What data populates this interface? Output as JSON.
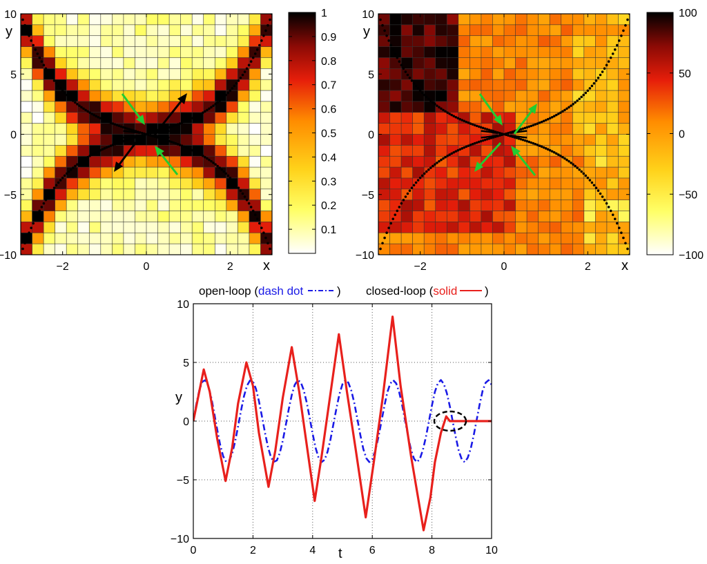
{
  "chart_data": [
    {
      "type": "heatmap",
      "panel": "top-left",
      "xlabel": "x",
      "ylabel": "y",
      "xlim": [
        -3,
        3
      ],
      "ylim": [
        -10,
        10
      ],
      "xticks": [
        -2,
        0,
        2
      ],
      "xtick_labels": [
        "−2",
        "0",
        "2"
      ],
      "yticks": [
        -10,
        -5,
        0,
        5,
        10
      ],
      "ytick_labels": [
        "−10",
        "−5",
        "0",
        "5",
        "10"
      ],
      "colorbar": {
        "min": 0,
        "max": 1,
        "ticks": [
          0.1,
          0.2,
          0.3,
          0.4,
          0.5,
          0.6,
          0.7,
          0.8,
          0.9,
          1
        ],
        "tick_labels": [
          "0.1",
          "0.2",
          "0.3",
          "0.4",
          "0.5",
          "0.6",
          "0.7",
          "0.8",
          "0.9",
          "1"
        ]
      },
      "grid": {
        "nx": 22,
        "ny": 22
      },
      "description_pattern": "X-shaped ridge along hyperbola asymptotes y = ±3.3x",
      "separatrix_curves": [
        "y = 10*sinh(x)/sinh(3)",
        "y = -10*sinh(x)/sinh(3)"
      ]
    },
    {
      "type": "heatmap",
      "panel": "top-right",
      "xlabel": "x",
      "ylabel": "y",
      "xlim": [
        -3,
        3
      ],
      "ylim": [
        -10,
        10
      ],
      "xticks": [
        -2,
        0,
        2
      ],
      "xtick_labels": [
        "−2",
        "0",
        "2"
      ],
      "yticks": [
        -10,
        -5,
        0,
        5,
        10
      ],
      "ytick_labels": [
        "−10",
        "−5",
        "0",
        "5",
        "10"
      ],
      "colorbar": {
        "min": -100,
        "max": 100,
        "ticks": [
          -100,
          -50,
          0,
          50,
          100
        ],
        "tick_labels": [
          "−100",
          "−50",
          "0",
          "50",
          "100"
        ]
      },
      "grid": {
        "nx": 22,
        "ny": 22
      }
    },
    {
      "type": "line",
      "panel": "bottom",
      "xlabel": "t",
      "ylabel": "y",
      "xlim": [
        0,
        10
      ],
      "ylim": [
        -10,
        10
      ],
      "xticks": [
        0,
        2,
        4,
        6,
        8,
        10
      ],
      "xtick_labels": [
        "0",
        "2",
        "4",
        "6",
        "8",
        "10"
      ],
      "yticks": [
        -10,
        -5,
        0,
        5,
        10
      ],
      "ytick_labels": [
        "−10",
        "−5",
        "0",
        "5",
        "10"
      ],
      "grid": true,
      "series": [
        {
          "name": "open-loop",
          "style": "dash dot",
          "color": "#1a1ae6",
          "x": [
            0,
            0.1,
            0.2,
            0.3,
            0.4,
            0.5,
            0.6,
            0.7,
            0.8,
            0.9,
            1.0,
            1.1,
            1.2,
            1.3,
            1.4,
            1.5,
            1.6,
            1.7,
            1.8,
            1.9,
            2.0,
            2.1,
            2.2,
            2.3,
            2.4,
            2.5,
            2.6,
            2.7,
            2.8,
            2.9,
            3.0,
            3.1,
            3.2,
            3.3,
            3.4,
            3.5,
            3.6,
            3.7,
            3.8,
            3.9,
            4.0,
            4.1,
            4.2,
            4.3,
            4.4,
            4.5,
            4.6,
            4.7,
            4.8,
            4.9,
            5.0,
            5.1,
            5.2,
            5.3,
            5.4,
            5.5,
            5.6,
            5.7,
            5.8,
            5.9,
            6.0,
            6.1,
            6.2,
            6.3,
            6.4,
            6.5,
            6.6,
            6.7,
            6.8,
            6.9,
            7.0,
            7.1,
            7.2,
            7.3,
            7.4,
            7.5,
            7.6,
            7.7,
            7.8,
            7.9,
            8.0,
            8.1,
            8.2,
            8.3,
            8.4,
            8.5,
            8.6,
            8.7,
            8.8,
            8.9,
            9.0,
            9.1,
            9.2,
            9.3,
            9.4,
            9.5,
            9.6,
            9.7,
            9.8,
            9.9,
            10.0
          ],
          "y": [
            0,
            1.43,
            2.62,
            3.35,
            3.49,
            3.01,
            2.03,
            0.7,
            -0.73,
            -2.03,
            -2.99,
            -3.47,
            -3.39,
            -2.79,
            -1.75,
            -0.46,
            0.9,
            2.13,
            3.03,
            3.46,
            3.37,
            2.75,
            1.71,
            0.4,
            -0.96,
            -2.18,
            -3.06,
            -3.47,
            -3.35,
            -2.71,
            -1.66,
            -0.35,
            1.01,
            2.23,
            3.09,
            3.48,
            3.33,
            2.66,
            1.6,
            0.29,
            -1.07,
            -2.28,
            -3.12,
            -3.49,
            -3.3,
            -2.62,
            -1.55,
            -0.23,
            1.12,
            2.32,
            3.14,
            3.49,
            3.27,
            2.57,
            1.5,
            0.18,
            -1.18,
            -2.37,
            -3.17,
            -3.49,
            -3.25,
            -2.53,
            -1.44,
            -0.12,
            1.23,
            2.41,
            3.19,
            3.49,
            3.22,
            2.48,
            1.39,
            0.06,
            -1.28,
            -2.46,
            -3.21,
            -3.5,
            -3.19,
            -2.43,
            -1.33,
            0,
            1.33,
            2.5,
            3.23,
            3.5,
            3.16,
            2.38,
            1.27,
            -0.05,
            -1.38,
            -2.54,
            -3.25,
            -3.5,
            -3.13,
            -2.34,
            -1.22,
            0.1,
            1.43,
            2.58,
            3.27,
            3.49,
            3.1
          ]
        },
        {
          "name": "closed-loop",
          "style": "solid",
          "color": "#e8201c",
          "x": [
            0,
            0.35,
            0.55,
            0.8,
            1.08,
            1.3,
            1.5,
            1.78,
            2.0,
            2.2,
            2.52,
            2.75,
            3.0,
            3.3,
            3.55,
            3.8,
            4.07,
            4.3,
            4.55,
            4.88,
            5.15,
            5.45,
            5.78,
            6.05,
            6.35,
            6.68,
            6.95,
            7.3,
            7.72,
            7.95,
            8.1,
            8.3,
            8.48,
            8.6,
            8.75,
            9.0,
            10.0
          ],
          "y": [
            0,
            4.4,
            2.5,
            -1.5,
            -5.1,
            -2.3,
            1.5,
            5.0,
            3.0,
            -1.0,
            -5.6,
            -2.5,
            2.0,
            6.3,
            2.5,
            -2.0,
            -6.8,
            -3.0,
            1.5,
            7.4,
            2.5,
            -2.5,
            -8.2,
            -3.5,
            2.0,
            8.9,
            3.0,
            -3.0,
            -9.3,
            -6.5,
            -3.5,
            -1.0,
            0.4,
            0,
            0,
            0,
            0
          ]
        }
      ],
      "annotation": "dashed black circle at t≈8.5, y≈0"
    }
  ],
  "legend": {
    "open_prefix": "open-loop (",
    "open_style": "dash dot",
    "open_suffix": ")",
    "closed_prefix": "closed-loop (",
    "closed_style": "solid",
    "closed_suffix": ")"
  },
  "colors": {
    "open_loop": "#1a1ae6",
    "closed_loop": "#e8201c",
    "arrow_green": "#22cc33"
  }
}
